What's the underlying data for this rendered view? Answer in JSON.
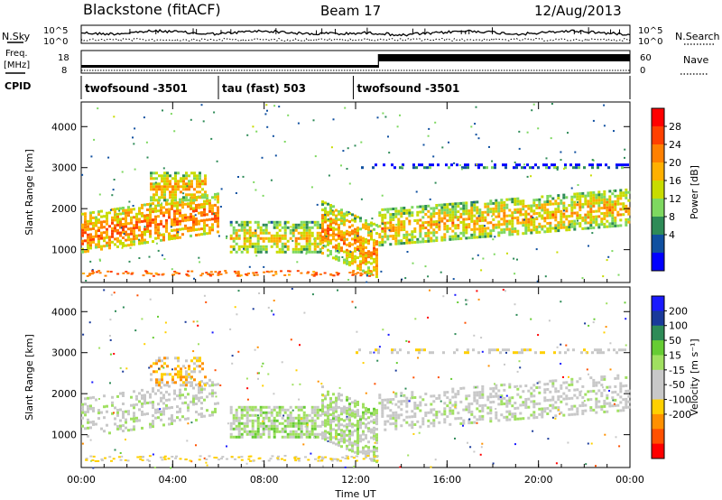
{
  "header": {
    "station": "Blackstone (fitACF)",
    "beam": "Beam 17",
    "date": "12/Aug/2013"
  },
  "top_panels": {
    "nsky_label": "N.Sky",
    "nsearch_label": "N.Search",
    "noise_tick_top": "10^5",
    "noise_tick_bottom": "10^0",
    "freq_label_line1": "Freq.",
    "freq_label_line2": "[MHz]",
    "freq_ticks": [
      "18",
      "8"
    ],
    "nave_label": "Nave",
    "nave_ticks": [
      "60",
      "0"
    ],
    "cpid_label": "CPID",
    "cpid_segments": [
      {
        "start_hour": 0.0,
        "end_hour": 6.0,
        "label": "twofsound -3501"
      },
      {
        "start_hour": 6.0,
        "end_hour": 11.9,
        "label": "tau (fast) 503"
      },
      {
        "start_hour": 11.9,
        "end_hour": 24.0,
        "label": "twofsound -3501"
      }
    ]
  },
  "power_colorbar": {
    "title": "Power [dB]",
    "ticks": [
      "28",
      "24",
      "20",
      "16",
      "12",
      "8",
      "4"
    ],
    "colors": [
      "#ff0000",
      "#ff4000",
      "#ff8000",
      "#ffb000",
      "#c8dc00",
      "#7ed860",
      "#2e8b57",
      "#1050a0",
      "#0000ff"
    ]
  },
  "velocity_colorbar": {
    "title": "Velocity [m s⁻¹]",
    "ticks": [
      "200",
      "100",
      "50",
      "15",
      "-15",
      "-50",
      "-100",
      "-200"
    ],
    "colors": [
      "#1a1aff",
      "#1a3a9a",
      "#2e8b57",
      "#66cc33",
      "#a0e060",
      "#c8c8c8",
      "#c8c8c8",
      "#ffd000",
      "#ff9000",
      "#ff5000",
      "#ff0000"
    ]
  },
  "chart_data": {
    "type": "heatmap",
    "xlabel": "Time UT",
    "x_ticks": [
      "00:00",
      "04:00",
      "08:00",
      "12:00",
      "16:00",
      "20:00",
      "00:00"
    ],
    "xlim_hours": [
      0,
      24
    ],
    "ylabel": "Slant Range [km]",
    "y_ticks": [
      "1000",
      "2000",
      "3000",
      "4000"
    ],
    "ylim_km": [
      200,
      4600
    ],
    "panels": [
      {
        "name": "Power",
        "unit": "dB",
        "range": [
          0,
          30
        ],
        "features": [
          {
            "t0": 0.0,
            "t1": 6.0,
            "r0": 900,
            "r1": 1900,
            "level": 24,
            "trend": "rising"
          },
          {
            "t0": 3.0,
            "t1": 5.5,
            "r0": 2200,
            "r1": 2900,
            "level": 20,
            "trend": "flat"
          },
          {
            "t0": 6.5,
            "t1": 10.5,
            "r0": 900,
            "r1": 1700,
            "level": 18,
            "trend": "flat"
          },
          {
            "t0": 10.5,
            "t1": 13.0,
            "r0": 900,
            "r1": 2200,
            "level": 22,
            "trend": "falling"
          },
          {
            "t0": 13.0,
            "t1": 24.0,
            "r0": 1100,
            "r1": 2000,
            "level": 20,
            "trend": "rising"
          },
          {
            "t0": 12.0,
            "t1": 24.0,
            "r0": 2950,
            "r1": 3100,
            "level": 6,
            "trend": "flat"
          }
        ]
      },
      {
        "name": "Velocity",
        "unit": "m s-1",
        "range": [
          -200,
          200
        ],
        "features": [
          {
            "t0": 0.0,
            "t1": 6.0,
            "r0": 900,
            "r1": 1900,
            "level": -5,
            "trend": "rising"
          },
          {
            "t0": 3.0,
            "t1": 5.5,
            "r0": 2200,
            "r1": 2900,
            "level": -80,
            "trend": "flat"
          },
          {
            "t0": 6.5,
            "t1": 10.5,
            "r0": 900,
            "r1": 1700,
            "level": 30,
            "trend": "flat"
          },
          {
            "t0": 10.5,
            "t1": 13.0,
            "r0": 900,
            "r1": 2200,
            "level": 20,
            "trend": "falling"
          },
          {
            "t0": 13.0,
            "t1": 24.0,
            "r0": 1100,
            "r1": 2000,
            "level": -5,
            "trend": "rising"
          },
          {
            "t0": 12.0,
            "t1": 24.0,
            "r0": 2950,
            "r1": 3100,
            "level": -40,
            "trend": "flat"
          }
        ]
      }
    ]
  }
}
